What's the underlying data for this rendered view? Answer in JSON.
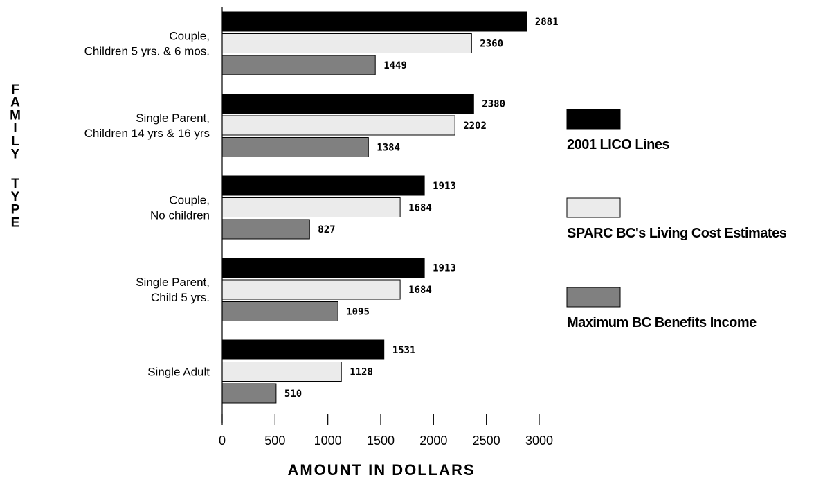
{
  "chart_data": {
    "type": "bar",
    "orientation": "horizontal",
    "title": "",
    "xlabel": "AMOUNT IN DOLLARS",
    "ylabel": "FAMILY TYPE",
    "xlim": [
      0,
      3000
    ],
    "xticks": [
      0,
      500,
      1000,
      1500,
      2000,
      2500,
      3000
    ],
    "grid": false,
    "legend_position": "right",
    "categories": [
      "Couple,\nChildren 5 yrs. & 6 mos.",
      "Single Parent,\nChildren 14 yrs & 16 yrs",
      "Couple,\nNo children",
      "Single Parent,\nChild 5 yrs.",
      "Single Adult"
    ],
    "series": [
      {
        "name": "2001 LICO Lines",
        "color": "#000000",
        "values": [
          2881,
          2380,
          1913,
          1913,
          1531
        ]
      },
      {
        "name": "SPARC BC's Living Cost Estimates",
        "color": "#ebebeb",
        "values": [
          2360,
          2202,
          1684,
          1684,
          1128
        ]
      },
      {
        "name": "Maximum BC Benefits Income",
        "color": "#808080",
        "values": [
          1449,
          1384,
          827,
          1095,
          510
        ]
      }
    ]
  }
}
